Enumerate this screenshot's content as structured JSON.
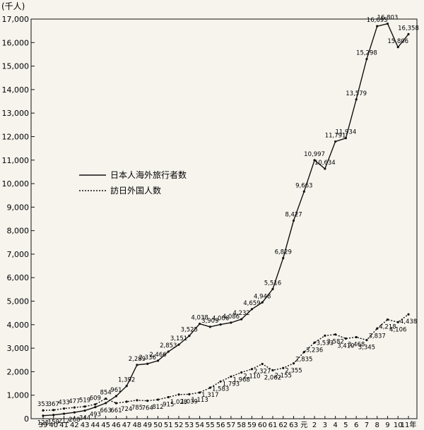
{
  "chart_data": {
    "type": "line",
    "unit_label": "(千人)",
    "x_unit": "年",
    "x": [
      "39",
      "40",
      "41",
      "42",
      "43",
      "44",
      "45",
      "46",
      "47",
      "48",
      "49",
      "50",
      "51",
      "52",
      "53",
      "54",
      "55",
      "56",
      "57",
      "58",
      "59",
      "60",
      "61",
      "62",
      "63",
      "元",
      "2",
      "3",
      "4",
      "5",
      "6",
      "7",
      "8",
      "9",
      "10",
      "11"
    ],
    "x_tick_labels": [
      "39",
      "40",
      "41",
      "42",
      "43",
      "44",
      "45",
      "46",
      "47",
      "48",
      "49",
      "50",
      "51",
      "52",
      "53",
      "54",
      "55",
      "56",
      "57",
      "58",
      "59",
      "60",
      "61",
      "62",
      "63",
      "元",
      "2",
      "3",
      "4",
      "5",
      "6",
      "7",
      "8",
      "9",
      "10",
      "11年"
    ],
    "yticks": [
      "0",
      "1,000",
      "2,000",
      "3,000",
      "4,000",
      "5,000",
      "6,000",
      "7,000",
      "8,000",
      "9,000",
      "10,000",
      "11,000",
      "12,000",
      "13,000",
      "14,000",
      "15,000",
      "16,000",
      "17,000"
    ],
    "ylim": [
      0,
      17000
    ],
    "series": [
      {
        "name": "日本人海外旅行者数",
        "style": "solid",
        "values": [
          128,
          159,
          212,
          268,
          344,
          493,
          663,
          961,
          1392,
          2289,
          2336,
          2466,
          2853,
          3151,
          3525,
          4038,
          3909,
          4006,
          4086,
          4232,
          4659,
          4948,
          5516,
          6829,
          8427,
          9663,
          10997,
          10634,
          11791,
          11934,
          13579,
          15298,
          16695,
          16803,
          15806,
          16358
        ],
        "labels": [
          "128",
          "159",
          "212",
          "268",
          "344",
          "493",
          "663",
          "961",
          "1,392",
          "2,289",
          "2,336",
          "2,466",
          "2,853",
          "3,151",
          "3,525",
          "4,038",
          "3,909",
          "4,006",
          "4,086",
          "4,232",
          "4,659",
          "4,948",
          "5,516",
          "6,829",
          "8,427",
          "9,663",
          "10,997",
          "10,634",
          "11,791",
          "11,934",
          "13,579",
          "15,298",
          "16,695",
          "16,803",
          "15,806",
          "16,358"
        ]
      },
      {
        "name": "訪日外国人数",
        "style": "dotted",
        "values": [
          353,
          367,
          433,
          477,
          519,
          609,
          854,
          661,
          724,
          785,
          764,
          812,
          915,
          1028,
          1039,
          1113,
          1317,
          1583,
          1793,
          1968,
          2110,
          2327,
          2062,
          2155,
          2355,
          2835,
          3236,
          3533,
          3582,
          3410,
          3468,
          3345,
          3837,
          4218,
          4106,
          4438
        ],
        "labels": [
          "353",
          "367",
          "433",
          "477",
          "519",
          "609",
          "854",
          "661",
          "724",
          "785",
          "764",
          "812",
          "915",
          "1,028",
          "1,039",
          "1,113",
          "1,317",
          "1,583",
          "1,793",
          "1,968",
          "2,110",
          "2,327",
          "2,062",
          "2,155",
          "2,355",
          "2,835",
          "3,236",
          "3,533",
          "3,582",
          "3,410",
          "3,468",
          "3,345",
          "3,837",
          "4,218",
          "4,106",
          "4,438"
        ]
      }
    ],
    "legend_position": "upper-left",
    "grid": false
  }
}
